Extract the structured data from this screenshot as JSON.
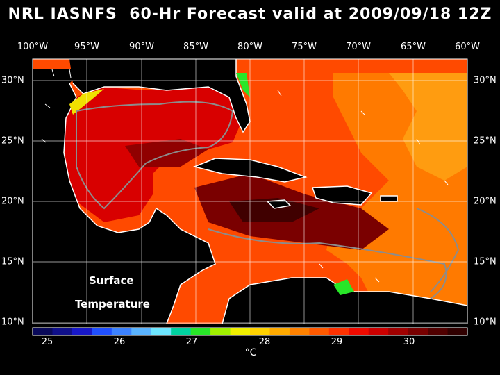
{
  "title": "NRL IASNFS  60-Hr Forecast valid at 2009/09/18 12Z",
  "map_label_line1": "Surface",
  "map_label_line2": "Temperature",
  "unit": "°C",
  "lon_labels": [
    "100°W",
    "95°W",
    "90°W",
    "85°W",
    "80°W",
    "75°W",
    "70°W",
    "65°W",
    "60°W"
  ],
  "lat_labels": [
    "30°N",
    "25°N",
    "20°N",
    "15°N",
    "10°N"
  ],
  "colorbar": {
    "labels": [
      "25",
      "26",
      "27",
      "28",
      "29",
      "30"
    ],
    "colors": [
      "#0a0a5a",
      "#10108a",
      "#1818c8",
      "#2050ff",
      "#3c82ff",
      "#5ab4ff",
      "#6ee6ff",
      "#00d2a0",
      "#28e628",
      "#a0f000",
      "#f0f000",
      "#ffd200",
      "#ffaa00",
      "#ff8200",
      "#ff5a00",
      "#ff3200",
      "#f00a00",
      "#cc0000",
      "#a00000",
      "#780000",
      "#500000",
      "#300000"
    ]
  },
  "colors": {
    "land": "#000000",
    "coast": "#ffffff",
    "bathy": "#8c8c8c",
    "grid": "#ffffff",
    "sst_base": "#ff5000",
    "sst_warm": "#c80000",
    "sst_hot": "#500000",
    "sst_cool": "#ff9600"
  }
}
